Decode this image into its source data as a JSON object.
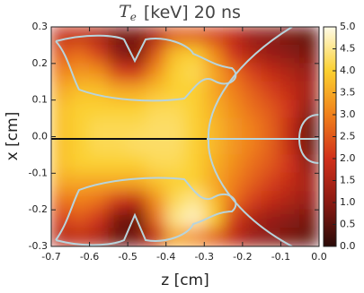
{
  "chart_data": {
    "type": "heatmap",
    "title": {
      "symbol": "T",
      "subscript": "e",
      "text": "[keV]   20 ns"
    },
    "xlabel": "z  [cm]",
    "ylabel": "x  [cm]",
    "xlim": [
      -0.7,
      0
    ],
    "ylim": [
      -0.3,
      0.3
    ],
    "xticks": [
      -0.7,
      -0.6,
      -0.5,
      -0.4,
      -0.3,
      -0.2,
      -0.1,
      {
        "value": 0,
        "label": "0.0"
      }
    ],
    "yticks": [
      -0.3,
      -0.2,
      -0.1,
      {
        "value": 0,
        "label": "0.0"
      },
      0.1,
      0.2,
      0.3
    ],
    "x": [
      -0.675,
      -0.625,
      -0.575,
      -0.525,
      -0.475,
      -0.425,
      -0.375,
      -0.325,
      -0.275,
      -0.225,
      -0.175,
      -0.125,
      -0.075,
      -0.025
    ],
    "y": [
      0.275,
      0.225,
      0.175,
      0.125,
      0.075,
      0.025,
      -0.025,
      -0.075,
      -0.125,
      -0.175,
      -0.225,
      -0.275
    ],
    "z": [
      [
        1.8,
        1.8,
        1.5,
        0.8,
        0.8,
        1.5,
        2.5,
        2.5,
        2.2,
        1.8,
        1.2,
        1.0,
        0.8,
        0.6
      ],
      [
        2.5,
        2.8,
        2.2,
        1.0,
        0.8,
        2.5,
        3.8,
        4.0,
        3.2,
        2.0,
        1.5,
        1.2,
        1.0,
        0.8
      ],
      [
        3.0,
        3.3,
        3.2,
        2.2,
        2.0,
        3.2,
        4.0,
        4.2,
        3.5,
        2.8,
        2.2,
        1.8,
        1.5,
        1.2
      ],
      [
        3.5,
        3.8,
        3.8,
        3.5,
        3.5,
        3.8,
        4.0,
        4.0,
        3.5,
        3.0,
        2.6,
        2.2,
        1.8,
        1.4
      ],
      [
        3.8,
        4.0,
        4.0,
        4.0,
        4.0,
        4.2,
        4.2,
        4.0,
        3.6,
        3.2,
        2.8,
        2.5,
        2.0,
        1.0
      ],
      [
        3.8,
        4.0,
        4.2,
        4.2,
        4.2,
        4.3,
        4.3,
        4.0,
        3.7,
        3.3,
        3.0,
        2.6,
        1.8,
        0.6
      ],
      [
        3.8,
        4.0,
        4.2,
        4.2,
        4.3,
        4.3,
        4.3,
        4.0,
        3.7,
        3.3,
        3.0,
        2.6,
        1.8,
        0.6
      ],
      [
        3.8,
        4.0,
        4.0,
        4.0,
        4.0,
        4.2,
        4.2,
        4.0,
        3.6,
        3.2,
        2.8,
        2.5,
        2.0,
        1.0
      ],
      [
        3.5,
        3.5,
        3.5,
        3.5,
        3.5,
        3.8,
        4.0,
        4.0,
        3.5,
        3.0,
        2.6,
        2.2,
        1.8,
        1.4
      ],
      [
        2.8,
        3.0,
        2.8,
        2.0,
        1.8,
        3.2,
        4.2,
        4.5,
        3.8,
        2.8,
        2.2,
        1.8,
        1.5,
        1.2
      ],
      [
        2.2,
        2.5,
        2.0,
        0.8,
        0.6,
        2.8,
        4.5,
        4.8,
        4.0,
        2.2,
        1.5,
        1.2,
        1.0,
        0.8
      ],
      [
        1.6,
        1.8,
        1.5,
        0.6,
        0.8,
        1.8,
        3.5,
        3.2,
        2.6,
        1.8,
        1.2,
        1.0,
        0.8,
        0.6
      ]
    ],
    "colorscale": [
      "#2a0a08",
      "#8a1a12",
      "#d0301a",
      "#f0801a",
      "#fbd030",
      "#fffbe8"
    ],
    "zlim": [
      0,
      5
    ],
    "zticks": [
      {
        "value": 0,
        "label": "0.0"
      },
      0.5,
      {
        "value": 1,
        "label": "1.0"
      },
      1.5,
      {
        "value": 2,
        "label": "2.0"
      },
      2.5,
      {
        "value": 3,
        "label": "3.0"
      },
      3.5,
      {
        "value": 4,
        "label": "4.0"
      },
      4.5,
      {
        "value": 5,
        "label": "5.0"
      }
    ]
  }
}
